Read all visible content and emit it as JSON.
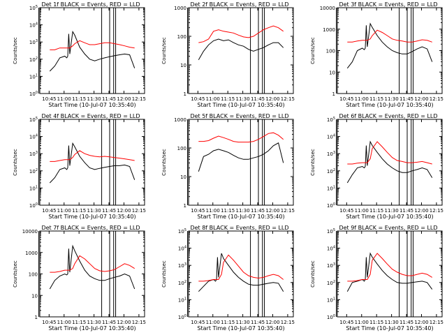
{
  "chart_data": [
    {
      "type": "line",
      "title": "Det 1f  BLACK = Events, RED = LLD",
      "xlabel": "Start Time (10-Jul-07 10:35:40)",
      "ylabel": "Counts/sec",
      "yscale": "log",
      "x_ticks": [
        "10:45",
        "11:00",
        "11:15",
        "11:30",
        "11:45",
        "12:00",
        "12:15"
      ],
      "y_ticks": [
        "10^0",
        "10^1",
        "10^2",
        "10^3",
        "10^4",
        "10^5"
      ],
      "ylim": [
        1,
        100000
      ],
      "x_minutes": [
        10,
        15,
        20,
        25,
        27,
        28,
        29,
        30,
        33,
        35,
        40,
        45,
        50,
        55,
        60,
        65,
        70,
        75,
        80,
        85,
        90,
        95
      ],
      "series": [
        {
          "name": "Events",
          "color": "#000000",
          "values": [
            20,
            40,
            120,
            150,
            120,
            150,
            3000,
            200,
            4000,
            2500,
            500,
            200,
            100,
            80,
            100,
            120,
            140,
            160,
            180,
            200,
            180,
            30
          ]
        },
        {
          "name": "LLD",
          "color": "#ff0000",
          "values": [
            350,
            350,
            450,
            450,
            450,
            450,
            450,
            450,
            600,
            800,
            1200,
            900,
            700,
            700,
            800,
            900,
            900,
            800,
            700,
            600,
            500,
            450
          ]
        }
      ],
      "vlines_minutes": [
        -1,
        62,
        70,
        74,
        76
      ],
      "grid": false
    },
    {
      "type": "line",
      "title": "Det 2f  BLACK = Events, RED = LLD",
      "xlabel": "Start Time (10-Jul-07 10:35:40)",
      "ylabel": "Counts/sec",
      "yscale": "log",
      "x_ticks": [
        "10:45",
        "11:00",
        "11:15",
        "11:30",
        "11:45",
        "12:00",
        "12:15"
      ],
      "y_ticks": [
        "1",
        "10",
        "100",
        "1000"
      ],
      "ylim": [
        1,
        1000
      ],
      "x_minutes": [
        10,
        15,
        20,
        25,
        30,
        35,
        40,
        45,
        50,
        55,
        60,
        65,
        70,
        75,
        80,
        85,
        90,
        95
      ],
      "series": [
        {
          "name": "Events",
          "color": "#000000",
          "values": [
            15,
            30,
            50,
            70,
            80,
            70,
            75,
            60,
            50,
            45,
            35,
            30,
            35,
            40,
            50,
            60,
            60,
            40
          ]
        },
        {
          "name": "LLD",
          "color": "#ff0000",
          "values": [
            60,
            65,
            80,
            150,
            170,
            150,
            140,
            130,
            110,
            95,
            90,
            100,
            130,
            170,
            200,
            230,
            200,
            150
          ]
        }
      ],
      "vlines_minutes": [
        -1,
        62,
        70,
        74,
        76
      ],
      "grid": false
    },
    {
      "type": "line",
      "title": "Det 3f  BLACK = Events, RED = LLD",
      "xlabel": "Start Time (10-Jul-07 10:35:40)",
      "ylabel": "Counts/sec",
      "yscale": "log",
      "x_ticks": [
        "10:45",
        "11:00",
        "11:15",
        "11:30",
        "11:45",
        "12:00",
        "12:15"
      ],
      "y_ticks": [
        "1",
        "10",
        "100",
        "1000",
        "10000"
      ],
      "ylim": [
        1,
        10000
      ],
      "x_minutes": [
        10,
        15,
        20,
        25,
        27,
        28,
        29,
        30,
        33,
        35,
        40,
        45,
        50,
        55,
        60,
        65,
        70,
        75,
        80,
        85,
        90,
        95
      ],
      "series": [
        {
          "name": "Events",
          "color": "#000000",
          "values": [
            15,
            30,
            100,
            130,
            110,
            130,
            1500,
            150,
            1800,
            1200,
            500,
            250,
            150,
            100,
            80,
            70,
            70,
            90,
            120,
            150,
            120,
            30
          ]
        },
        {
          "name": "LLD",
          "color": "#ff0000",
          "values": [
            250,
            250,
            280,
            300,
            300,
            300,
            300,
            300,
            350,
            500,
            900,
            700,
            500,
            350,
            300,
            280,
            250,
            250,
            280,
            320,
            300,
            250
          ]
        }
      ],
      "vlines_minutes": [
        -1,
        62,
        70,
        74,
        76
      ],
      "grid": false
    },
    {
      "type": "line",
      "title": "Det 4f  BLACK = Events, RED = LLD",
      "xlabel": "Start Time (10-Jul-07 10:35:40)",
      "ylabel": "Counts/sec",
      "yscale": "log",
      "x_ticks": [
        "10:45",
        "11:00",
        "11:15",
        "11:30",
        "11:45",
        "12:00",
        "12:15"
      ],
      "y_ticks": [
        "10^0",
        "10^1",
        "10^2",
        "10^3",
        "10^4",
        "10^5"
      ],
      "ylim": [
        1,
        100000
      ],
      "x_minutes": [
        10,
        15,
        20,
        25,
        27,
        28,
        29,
        30,
        33,
        35,
        40,
        45,
        50,
        55,
        60,
        65,
        70,
        75,
        80,
        85,
        90,
        95
      ],
      "series": [
        {
          "name": "Events",
          "color": "#000000",
          "values": [
            20,
            40,
            120,
            150,
            120,
            150,
            3000,
            200,
            4000,
            2500,
            700,
            300,
            150,
            120,
            140,
            160,
            180,
            200,
            200,
            220,
            180,
            30
          ]
        },
        {
          "name": "LLD",
          "color": "#ff0000",
          "values": [
            350,
            350,
            400,
            450,
            450,
            450,
            450,
            450,
            600,
            900,
            1500,
            1000,
            800,
            700,
            650,
            700,
            650,
            600,
            550,
            500,
            450,
            400
          ]
        }
      ],
      "vlines_minutes": [
        -1,
        62,
        70,
        74,
        76
      ],
      "grid": false
    },
    {
      "type": "line",
      "title": "Det 5f  BLACK = Events, RED = LLD",
      "xlabel": "Start Time (10-Jul-07 10:35:40)",
      "ylabel": "Counts/sec",
      "yscale": "log",
      "x_ticks": [
        "10:45",
        "11:00",
        "11:15",
        "11:30",
        "11:45",
        "12:00",
        "12:15"
      ],
      "y_ticks": [
        "1",
        "10",
        "100",
        "1000"
      ],
      "ylim": [
        1,
        1000
      ],
      "x_minutes": [
        10,
        15,
        20,
        25,
        30,
        35,
        40,
        45,
        50,
        55,
        60,
        65,
        70,
        75,
        80,
        85,
        90,
        95
      ],
      "series": [
        {
          "name": "Events",
          "color": "#000000",
          "values": [
            15,
            50,
            60,
            80,
            90,
            80,
            70,
            55,
            45,
            40,
            40,
            45,
            50,
            60,
            80,
            120,
            150,
            30
          ]
        },
        {
          "name": "LLD",
          "color": "#ff0000",
          "values": [
            170,
            170,
            180,
            220,
            260,
            230,
            200,
            170,
            160,
            160,
            160,
            170,
            200,
            250,
            320,
            340,
            280,
            200
          ]
        }
      ],
      "vlines_minutes": [
        -1,
        62,
        70,
        74,
        76
      ],
      "grid": false
    },
    {
      "type": "line",
      "title": "Det 6f  BLACK = Events, RED = LLD",
      "xlabel": "Start Time (10-Jul-07 10:35:40)",
      "ylabel": "Counts/sec",
      "yscale": "log",
      "x_ticks": [
        "10:45",
        "11:00",
        "11:15",
        "11:30",
        "11:45",
        "12:00",
        "12:15"
      ],
      "y_ticks": [
        "10^0",
        "10^1",
        "10^2",
        "10^3",
        "10^4",
        "10^5"
      ],
      "ylim": [
        1,
        100000
      ],
      "x_minutes": [
        10,
        15,
        20,
        25,
        27,
        28,
        29,
        30,
        33,
        35,
        40,
        45,
        50,
        55,
        60,
        65,
        70,
        75,
        80,
        85,
        90,
        95
      ],
      "series": [
        {
          "name": "Events",
          "color": "#000000",
          "values": [
            20,
            60,
            150,
            180,
            150,
            180,
            3000,
            200,
            5000,
            3000,
            1200,
            500,
            250,
            150,
            100,
            80,
            80,
            100,
            120,
            150,
            120,
            40
          ]
        },
        {
          "name": "LLD",
          "color": "#ff0000",
          "values": [
            250,
            250,
            280,
            300,
            300,
            300,
            300,
            300,
            500,
            2000,
            5000,
            2500,
            1200,
            600,
            400,
            350,
            300,
            300,
            320,
            350,
            300,
            250
          ]
        }
      ],
      "vlines_minutes": [
        -1,
        62,
        70,
        74,
        76
      ],
      "grid": false
    },
    {
      "type": "line",
      "title": "Det 7f  BLACK = Events, RED = LLD",
      "xlabel": "Start Time (10-Jul-07 10:35:40)",
      "ylabel": "Counts/sec",
      "yscale": "log",
      "x_ticks": [
        "10:45",
        "11:00",
        "11:15",
        "11:30",
        "11:45",
        "12:00",
        "12:15"
      ],
      "y_ticks": [
        "1",
        "10",
        "100",
        "1000",
        "10000"
      ],
      "ylim": [
        1,
        10000
      ],
      "x_minutes": [
        10,
        15,
        20,
        25,
        27,
        28,
        29,
        30,
        33,
        35,
        40,
        45,
        50,
        55,
        60,
        65,
        70,
        75,
        80,
        85,
        90,
        95
      ],
      "series": [
        {
          "name": "Events",
          "color": "#000000",
          "values": [
            20,
            50,
            80,
            100,
            90,
            100,
            1500,
            120,
            2000,
            1200,
            400,
            150,
            80,
            60,
            50,
            50,
            60,
            70,
            80,
            100,
            80,
            20
          ]
        },
        {
          "name": "LLD",
          "color": "#ff0000",
          "values": [
            120,
            120,
            130,
            150,
            150,
            150,
            150,
            150,
            180,
            300,
            700,
            500,
            300,
            180,
            140,
            130,
            140,
            160,
            220,
            300,
            250,
            180
          ]
        }
      ],
      "vlines_minutes": [
        -1,
        62,
        70,
        74,
        76
      ],
      "grid": false
    },
    {
      "type": "line",
      "title": "Det 8f  BLACK = Events, RED = LLD",
      "xlabel": "Start Time (10-Jul-07 10:35:40)",
      "ylabel": "Counts/sec",
      "yscale": "log",
      "x_ticks": [
        "10:45",
        "11:00",
        "11:15",
        "11:30",
        "11:45",
        "12:00",
        "12:15"
      ],
      "y_ticks": [
        "10^0",
        "10^1",
        "10^2",
        "10^3",
        "10^4",
        "10^5"
      ],
      "ylim": [
        1,
        100000
      ],
      "x_minutes": [
        10,
        15,
        20,
        25,
        27,
        28,
        29,
        30,
        33,
        35,
        40,
        45,
        50,
        55,
        60,
        65,
        70,
        75,
        80,
        85,
        90,
        95
      ],
      "series": [
        {
          "name": "Events",
          "color": "#000000",
          "values": [
            30,
            60,
            120,
            150,
            120,
            150,
            3000,
            200,
            5000,
            2500,
            1000,
            400,
            200,
            120,
            80,
            70,
            70,
            80,
            90,
            100,
            90,
            30
          ]
        },
        {
          "name": "LLD",
          "color": "#ff0000",
          "values": [
            120,
            120,
            130,
            150,
            150,
            150,
            150,
            150,
            300,
            1500,
            4000,
            2000,
            900,
            400,
            250,
            200,
            180,
            200,
            250,
            300,
            250,
            150
          ]
        }
      ],
      "vlines_minutes": [
        -1,
        62,
        70,
        74,
        76
      ],
      "grid": false
    },
    {
      "type": "line",
      "title": "Det 9f  BLACK = Events, RED = LLD",
      "xlabel": "Start Time (10-Jul-07 10:35:40)",
      "ylabel": "Counts/sec",
      "yscale": "log",
      "x_ticks": [
        "10:45",
        "11:00",
        "11:15",
        "11:30",
        "11:45",
        "12:00",
        "12:15"
      ],
      "y_ticks": [
        "10^0",
        "10^1",
        "10^2",
        "10^3",
        "10^4",
        "10^5"
      ],
      "ylim": [
        1,
        100000
      ],
      "x_minutes": [
        10,
        15,
        20,
        25,
        27,
        28,
        29,
        30,
        33,
        35,
        40,
        45,
        50,
        55,
        60,
        65,
        70,
        75,
        80,
        85,
        90,
        95
      ],
      "series": [
        {
          "name": "Events",
          "color": "#000000",
          "values": [
            30,
            100,
            120,
            150,
            120,
            150,
            3000,
            200,
            5000,
            3000,
            1200,
            500,
            250,
            150,
            100,
            90,
            90,
            100,
            110,
            120,
            100,
            40
          ]
        },
        {
          "name": "LLD",
          "color": "#ff0000",
          "values": [
            120,
            120,
            130,
            150,
            150,
            150,
            150,
            150,
            300,
            2000,
            5000,
            2500,
            1200,
            600,
            400,
            300,
            250,
            250,
            300,
            350,
            300,
            200
          ]
        }
      ],
      "vlines_minutes": [
        -1,
        62,
        70,
        74,
        76
      ],
      "grid": false
    }
  ]
}
